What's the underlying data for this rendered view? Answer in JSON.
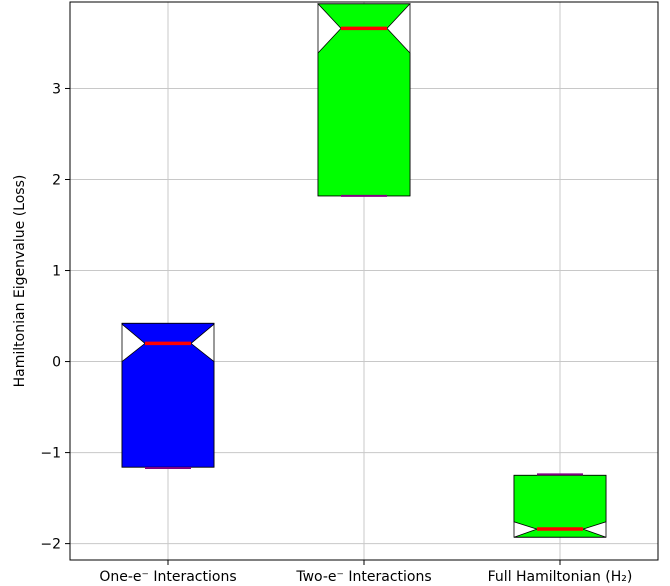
{
  "chart_data": {
    "type": "box",
    "variant": "notched",
    "title": "",
    "xlabel": "",
    "ylabel": "Hamiltonian Eigenvalue (Loss)",
    "ylim": [
      -2.18,
      3.95
    ],
    "grid": true,
    "yticks": [
      -2,
      -1,
      0,
      1,
      2,
      3
    ],
    "ytick_labels": [
      "−2",
      "−1",
      "0",
      "1",
      "2",
      "3"
    ],
    "categories": [
      "One-e⁻ Interactions",
      "Two-e⁻ Interactions",
      "Full Hamiltonian (H₂)"
    ],
    "boxes": [
      {
        "q1": -1.16,
        "q3": 0.42,
        "median": 0.2,
        "notch_low": 0.0,
        "notch_high": 0.41,
        "low_line": -1.17,
        "color": "#0000ff"
      },
      {
        "q1": 1.82,
        "q3": 3.93,
        "median": 3.66,
        "notch_low": 3.39,
        "notch_high": 3.93,
        "low_line": 1.82,
        "color": "#00ff00"
      },
      {
        "q1": -1.93,
        "q3": -1.25,
        "median": -1.84,
        "notch_low": -1.93,
        "notch_high": -1.76,
        "low_line": -1.24,
        "color": "#00ff00"
      }
    ],
    "median_color": "#ff0000",
    "low_line_color": "#800080"
  }
}
